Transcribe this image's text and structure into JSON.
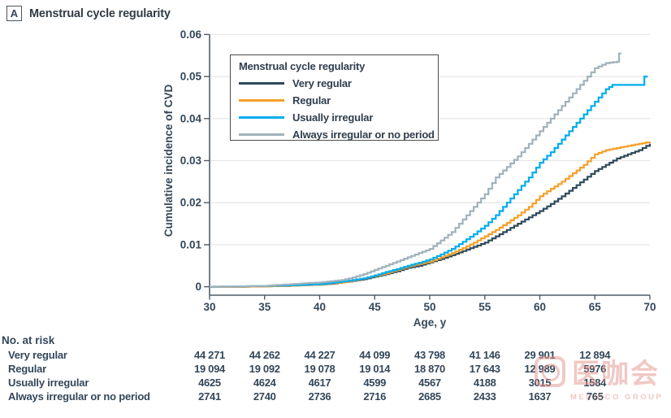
{
  "header": {
    "panel_label": "A",
    "title": "Menstrual cycle regularity"
  },
  "chart_data": {
    "type": "line",
    "subtype": "step-function-cumulative-incidence",
    "title": "Menstrual cycle regularity",
    "xlabel": "Age, y",
    "ylabel": "Cumulative incidence of CVD",
    "xlim": [
      30,
      70
    ],
    "ylim": [
      0,
      0.06
    ],
    "xticks": [
      30,
      35,
      40,
      45,
      50,
      55,
      60,
      65,
      70
    ],
    "yticks": [
      0,
      0.01,
      0.02,
      0.03,
      0.04,
      0.05,
      0.06
    ],
    "ytick_labels": [
      "0",
      "0.01",
      "0.02",
      "0.03",
      "0.04",
      "0.05",
      "0.06"
    ],
    "grid": "horizontal",
    "legend_title": "Menstrual cycle regularity",
    "legend_position": "upper-left-inside",
    "series": [
      {
        "name": "Very regular",
        "color": "#2d4a5a",
        "points": [
          [
            30,
            0
          ],
          [
            33,
            0
          ],
          [
            35,
            0.0001
          ],
          [
            37,
            0.0002
          ],
          [
            39,
            0.0004
          ],
          [
            40,
            0.0005
          ],
          [
            41,
            0.0007
          ],
          [
            42,
            0.001
          ],
          [
            43,
            0.0014
          ],
          [
            44,
            0.0018
          ],
          [
            45,
            0.0024
          ],
          [
            46,
            0.003
          ],
          [
            47,
            0.0037
          ],
          [
            48,
            0.0045
          ],
          [
            49,
            0.005
          ],
          [
            50,
            0.0058
          ],
          [
            51,
            0.0066
          ],
          [
            52,
            0.0075
          ],
          [
            53,
            0.0085
          ],
          [
            54,
            0.0095
          ],
          [
            55,
            0.0105
          ],
          [
            56,
            0.012
          ],
          [
            57,
            0.0135
          ],
          [
            58,
            0.015
          ],
          [
            59,
            0.0165
          ],
          [
            60,
            0.018
          ],
          [
            61,
            0.0197
          ],
          [
            62,
            0.0215
          ],
          [
            63,
            0.0235
          ],
          [
            64,
            0.0255
          ],
          [
            65,
            0.0275
          ],
          [
            66,
            0.029
          ],
          [
            67,
            0.0305
          ],
          [
            68,
            0.0315
          ],
          [
            69,
            0.0325
          ],
          [
            70,
            0.034
          ]
        ]
      },
      {
        "name": "Regular",
        "color": "#f5a02b",
        "points": [
          [
            30,
            0
          ],
          [
            33,
            0
          ],
          [
            35,
            0.0001
          ],
          [
            37,
            0.0002
          ],
          [
            39,
            0.0004
          ],
          [
            40,
            0.0005
          ],
          [
            41,
            0.0008
          ],
          [
            42,
            0.001
          ],
          [
            43,
            0.0015
          ],
          [
            44,
            0.002
          ],
          [
            45,
            0.0026
          ],
          [
            46,
            0.0032
          ],
          [
            47,
            0.004
          ],
          [
            48,
            0.0048
          ],
          [
            49,
            0.0054
          ],
          [
            50,
            0.006
          ],
          [
            51,
            0.007
          ],
          [
            52,
            0.008
          ],
          [
            53,
            0.0092
          ],
          [
            54,
            0.0105
          ],
          [
            55,
            0.012
          ],
          [
            56,
            0.0135
          ],
          [
            57,
            0.0152
          ],
          [
            58,
            0.017
          ],
          [
            59,
            0.019
          ],
          [
            60,
            0.0215
          ],
          [
            61,
            0.0233
          ],
          [
            62,
            0.025
          ],
          [
            63,
            0.027
          ],
          [
            64,
            0.029
          ],
          [
            65,
            0.0315
          ],
          [
            66,
            0.0325
          ],
          [
            67,
            0.033
          ],
          [
            68,
            0.0335
          ],
          [
            69,
            0.034
          ],
          [
            70,
            0.0345
          ]
        ]
      },
      {
        "name": "Usually irregular",
        "color": "#00adee",
        "points": [
          [
            30,
            0
          ],
          [
            33,
            0.0001
          ],
          [
            35,
            0.0002
          ],
          [
            37,
            0.0003
          ],
          [
            39,
            0.0005
          ],
          [
            40,
            0.0006
          ],
          [
            41,
            0.0009
          ],
          [
            42,
            0.0012
          ],
          [
            43,
            0.0016
          ],
          [
            44,
            0.002
          ],
          [
            45,
            0.0027
          ],
          [
            46,
            0.0035
          ],
          [
            47,
            0.0042
          ],
          [
            48,
            0.005
          ],
          [
            49,
            0.0057
          ],
          [
            50,
            0.0065
          ],
          [
            51,
            0.0077
          ],
          [
            52,
            0.009
          ],
          [
            53,
            0.0107
          ],
          [
            54,
            0.0125
          ],
          [
            55,
            0.0145
          ],
          [
            56,
            0.017
          ],
          [
            57,
            0.02
          ],
          [
            58,
            0.023
          ],
          [
            59,
            0.026
          ],
          [
            60,
            0.0295
          ],
          [
            61,
            0.032
          ],
          [
            62,
            0.035
          ],
          [
            63,
            0.038
          ],
          [
            64,
            0.041
          ],
          [
            65,
            0.044
          ],
          [
            66,
            0.047
          ],
          [
            66.6,
            0.048
          ],
          [
            69.3,
            0.048
          ],
          [
            69.5,
            0.05
          ],
          [
            69.8,
            0.05
          ]
        ]
      },
      {
        "name": "Always irregular or no period",
        "color": "#9fb2bb",
        "points": [
          [
            30,
            0
          ],
          [
            33,
            0.0001
          ],
          [
            35,
            0.0002
          ],
          [
            36,
            0.0004
          ],
          [
            38,
            0.0007
          ],
          [
            39,
            0.0009
          ],
          [
            40,
            0.001
          ],
          [
            41,
            0.0013
          ],
          [
            42,
            0.0016
          ],
          [
            43,
            0.0022
          ],
          [
            44,
            0.003
          ],
          [
            45,
            0.004
          ],
          [
            46,
            0.005
          ],
          [
            47,
            0.006
          ],
          [
            48,
            0.007
          ],
          [
            49,
            0.008
          ],
          [
            50,
            0.009
          ],
          [
            51,
            0.011
          ],
          [
            52,
            0.013
          ],
          [
            53,
            0.016
          ],
          [
            54,
            0.019
          ],
          [
            55,
            0.022
          ],
          [
            56,
            0.026
          ],
          [
            57,
            0.0285
          ],
          [
            58,
            0.031
          ],
          [
            59,
            0.034
          ],
          [
            60,
            0.037
          ],
          [
            61,
            0.04
          ],
          [
            62,
            0.043
          ],
          [
            63,
            0.046
          ],
          [
            64,
            0.049
          ],
          [
            65,
            0.052
          ],
          [
            66,
            0.0532
          ],
          [
            67,
            0.0535
          ],
          [
            67.2,
            0.0555
          ],
          [
            67.4,
            0.0555
          ]
        ]
      }
    ]
  },
  "risk_table": {
    "header": "No. at risk",
    "ages": [
      30,
      35,
      40,
      45,
      50,
      55,
      60,
      65
    ],
    "rows": [
      {
        "label": "Very regular",
        "values": [
          "44 271",
          "44 262",
          "44 227",
          "44 099",
          "43 798",
          "41 146",
          "29 901",
          "12 894"
        ]
      },
      {
        "label": "Regular",
        "values": [
          "19 094",
          "19 092",
          "19 078",
          "19 014",
          "18 870",
          "17 643",
          "12 989",
          "5976"
        ]
      },
      {
        "label": "Usually irregular",
        "values": [
          "4625",
          "4624",
          "4617",
          "4599",
          "4567",
          "4188",
          "3015",
          "1584"
        ]
      },
      {
        "label": "Always irregular or no period",
        "values": [
          "2741",
          "2740",
          "2736",
          "2716",
          "2685",
          "2433",
          "1637",
          "765"
        ]
      }
    ]
  },
  "watermark": {
    "cn_text": "医咖会",
    "en_text": "MEDIECO GROUP",
    "color": "#e2928b"
  },
  "style_colors": {
    "text": "#33475a",
    "axis": "#515c66",
    "gridline": "#e4e4e4"
  }
}
